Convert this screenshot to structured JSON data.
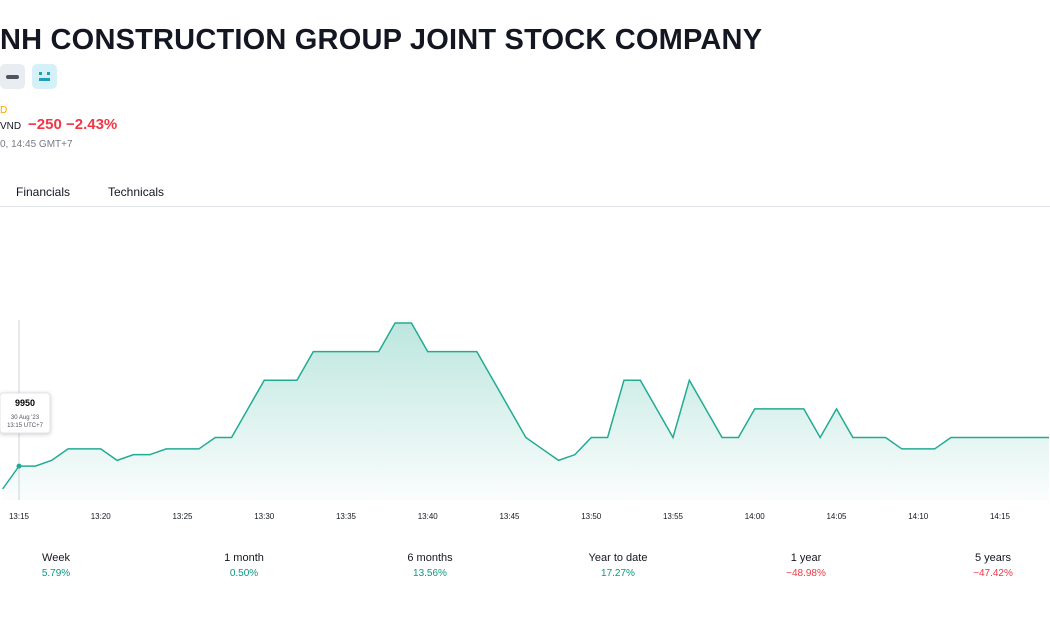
{
  "header": {
    "title": "NH CONSTRUCTION GROUP JOINT STOCK COMPANY",
    "exchange_fragment": "D",
    "currency": "VND",
    "change": "−250",
    "change_percent": "−2.43%",
    "timestamp_fragment": "0, 14:45 GMT+7"
  },
  "tabs": [
    "Financials",
    "Technicals"
  ],
  "chart_data": {
    "type": "area",
    "categories": [
      null,
      "13:15",
      null,
      null,
      null,
      null,
      "13:20",
      null,
      null,
      null,
      null,
      "13:25",
      null,
      null,
      null,
      null,
      "13:30",
      null,
      null,
      null,
      null,
      "13:35",
      null,
      null,
      null,
      null,
      "13:40",
      null,
      null,
      null,
      null,
      "13:45",
      null,
      null,
      null,
      null,
      "13:50",
      null,
      null,
      null,
      null,
      "13:55",
      null,
      null,
      null,
      null,
      "14:00",
      null,
      null,
      null,
      null,
      "14:05",
      null,
      null,
      null,
      null,
      "14:10",
      null,
      null,
      null,
      null,
      "14:15",
      null,
      null,
      null
    ],
    "series": [
      {
        "color": "#22ab94",
        "values": [
          9910,
          9950,
          9950,
          9960,
          9980,
          9980,
          9980,
          9960,
          9970,
          9970,
          9980,
          9980,
          9980,
          10000,
          10000,
          10050,
          10100,
          10100,
          10100,
          10150,
          10150,
          10150,
          10150,
          10150,
          10200,
          10200,
          10150,
          10150,
          10150,
          10150,
          10100,
          10050,
          10000,
          9980,
          9960,
          9970,
          10000,
          10000,
          10100,
          10100,
          10050,
          10000,
          10100,
          10050,
          10000,
          10000,
          10050,
          10050,
          10050,
          10050,
          10000,
          10050,
          10000,
          10000,
          10000,
          9980,
          9980,
          9980,
          10000,
          10000,
          10000,
          10000,
          10000,
          10000,
          10000
        ]
      }
    ],
    "tooltip": {
      "date": "30 Aug '23",
      "time": "13:15 UTC+7"
    }
  },
  "performance": [
    {
      "label": "Week",
      "value": "5.79%"
    },
    {
      "label": "1 month",
      "value": "0.50%"
    },
    {
      "label": "6 months",
      "value": "13.56%"
    },
    {
      "label": "Year to date",
      "value": "17.27%"
    },
    {
      "label": "1 year",
      "value": "−48.98%"
    },
    {
      "label": "5 years",
      "value": "−47.42%"
    }
  ]
}
